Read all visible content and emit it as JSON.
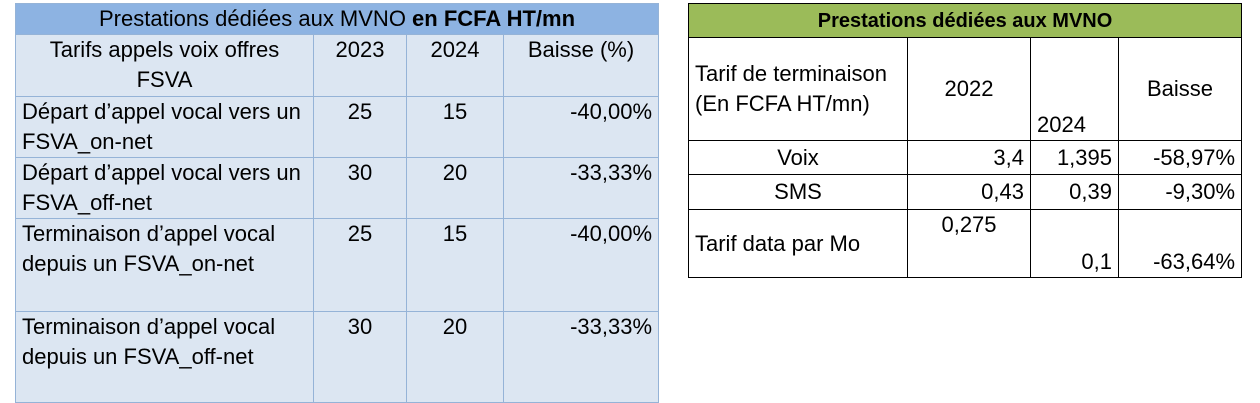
{
  "left_table": {
    "title": "Prestations dédiées aux MVNO ",
    "title_bold": "en FCFA HT/mn",
    "header": [
      "Tarifs appels voix offres FSVA",
      "2023",
      "2024",
      "Baisse (%)"
    ],
    "rows": [
      [
        "Départ d’appel vocal vers un FSVA_on-net",
        "25",
        "15",
        "-40,00%"
      ],
      [
        "Départ d’appel vocal vers un FSVA_off-net",
        "30",
        "20",
        "-33,33%"
      ],
      [
        "Terminaison d’appel vocal depuis un FSVA_on-net",
        "25",
        "15",
        "-40,00%"
      ],
      [
        "Terminaison d’appel vocal depuis un FSVA_off-net",
        "30",
        "20",
        "-33,33%"
      ]
    ]
  },
  "right_table": {
    "title": "Prestations dédiées aux MVNO",
    "header": [
      "Tarif de terminaison (En FCFA HT/mn)",
      "2022",
      "2024",
      "Baisse"
    ],
    "rows": [
      [
        "Voix",
        "3,4",
        "1,395",
        "-58,97%"
      ],
      [
        "SMS",
        "0,43",
        "0,39",
        "-9,30%"
      ],
      [
        "Tarif data par Mo",
        "0,275",
        "0,1",
        "-63,64%"
      ]
    ]
  }
}
